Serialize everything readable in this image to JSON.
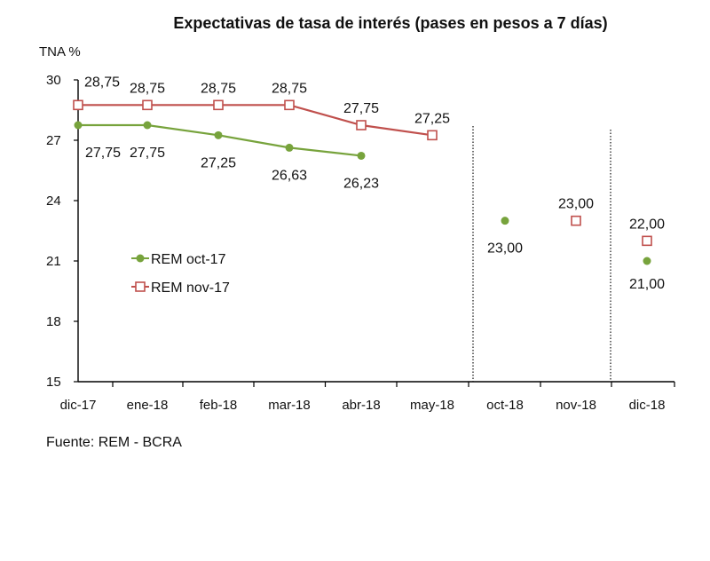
{
  "chart_data": {
    "type": "line",
    "title": "Expectativas de tasa de interés (pases en pesos a 7 días)",
    "ylabel": "TNA %",
    "xlabel": "",
    "ylim": [
      15,
      30
    ],
    "yticks": [
      "15",
      "18",
      "21",
      "24",
      "27",
      "30"
    ],
    "categories": [
      "dic-17",
      "ene-18",
      "feb-18",
      "mar-18",
      "abr-18",
      "may-18",
      "oct-18",
      "nov-18",
      "dic-18"
    ],
    "series": [
      {
        "name": "REM oct-17",
        "color": "#77a33c",
        "marker": "filled-circle",
        "values": [
          27.75,
          27.75,
          27.25,
          26.63,
          26.23,
          null,
          23.0,
          null,
          21.0
        ],
        "labels": [
          "27,75",
          "27,75",
          "27,25",
          "26,63",
          "26,23",
          null,
          "23,00",
          null,
          "21,00"
        ]
      },
      {
        "name": "REM nov-17",
        "color": "#c0504d",
        "marker": "hollow-square",
        "values": [
          28.75,
          28.75,
          28.75,
          28.75,
          27.75,
          27.25,
          null,
          23.0,
          22.0
        ],
        "labels": [
          "28,75",
          "28,75",
          "28,75",
          "28,75",
          "27,75",
          "27,25",
          null,
          "23,00",
          "22,00"
        ]
      }
    ],
    "legend": "center-left",
    "source": "Fuente:  REM - BCRA"
  }
}
